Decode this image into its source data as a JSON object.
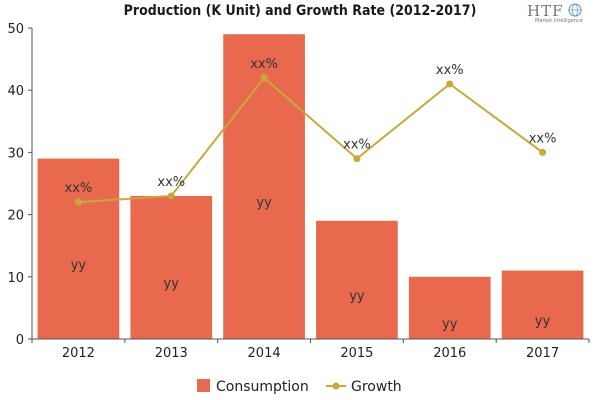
{
  "chart_data": {
    "type": "bar",
    "title": "Production (K Unit) and Growth Rate (2012-2017)",
    "categories": [
      "2012",
      "2013",
      "2014",
      "2015",
      "2016",
      "2017"
    ],
    "ylim": [
      0,
      50
    ],
    "yticks": [
      0,
      10,
      20,
      30,
      40,
      50
    ],
    "series": [
      {
        "name": "Consumption",
        "type": "bar",
        "values": [
          29,
          23,
          49,
          19,
          10,
          11
        ],
        "labels": [
          "yy",
          "yy",
          "yy",
          "yy",
          "yy",
          "yy"
        ],
        "color": "#e8694e"
      },
      {
        "name": "Growth",
        "type": "line",
        "values": [
          22,
          23,
          42,
          29,
          41,
          30
        ],
        "labels": [
          "xx%",
          "xx%",
          "xx%",
          "xx%",
          "xx%",
          "xx%"
        ],
        "color": "#c8a83a"
      }
    ]
  },
  "logo": {
    "mark": "HTF",
    "tagline": "Market Intelligence"
  }
}
